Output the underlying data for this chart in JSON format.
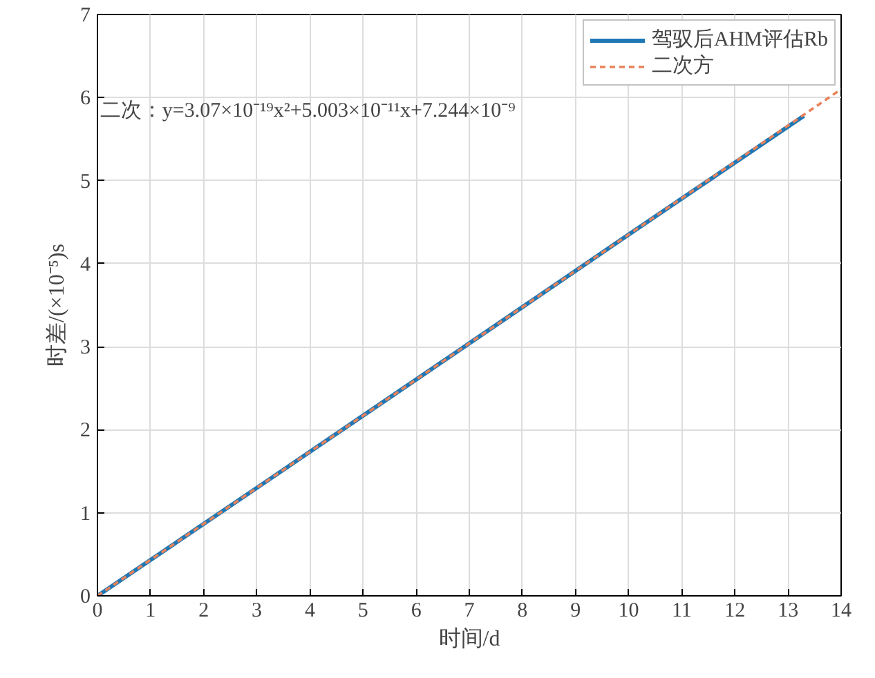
{
  "chart_data": {
    "type": "line",
    "xlabel": "时间/d",
    "ylabel": "时差/(×10⁻⁵)s",
    "annotations": [
      "二次：y=3.07×10⁻¹⁹x²+5.003×10⁻¹¹x+7.244×10⁻⁹"
    ],
    "series": [
      {
        "name": "驾驭后AHM评估Rb",
        "color": "#1f77b4",
        "x": [
          0,
          3,
          7,
          10,
          13.3
        ],
        "values": [
          0,
          1.3,
          3.04,
          4.35,
          5.78
        ],
        "line_style": "solid"
      },
      {
        "name": "二次方",
        "color": "#e8825a",
        "x": [
          0,
          3,
          7,
          10,
          14
        ],
        "values": [
          0,
          1.3,
          3.04,
          4.35,
          6.1
        ],
        "line_style": "dashed"
      }
    ],
    "xlim": [
      0,
      14
    ],
    "ylim": [
      0,
      7
    ],
    "xticks": [
      0,
      1,
      2,
      3,
      4,
      5,
      6,
      7,
      8,
      9,
      10,
      11,
      12,
      13,
      14
    ],
    "yticks": [
      0,
      1,
      2,
      3,
      4,
      5,
      6,
      7
    ],
    "grid": true,
    "legend": "top right"
  }
}
